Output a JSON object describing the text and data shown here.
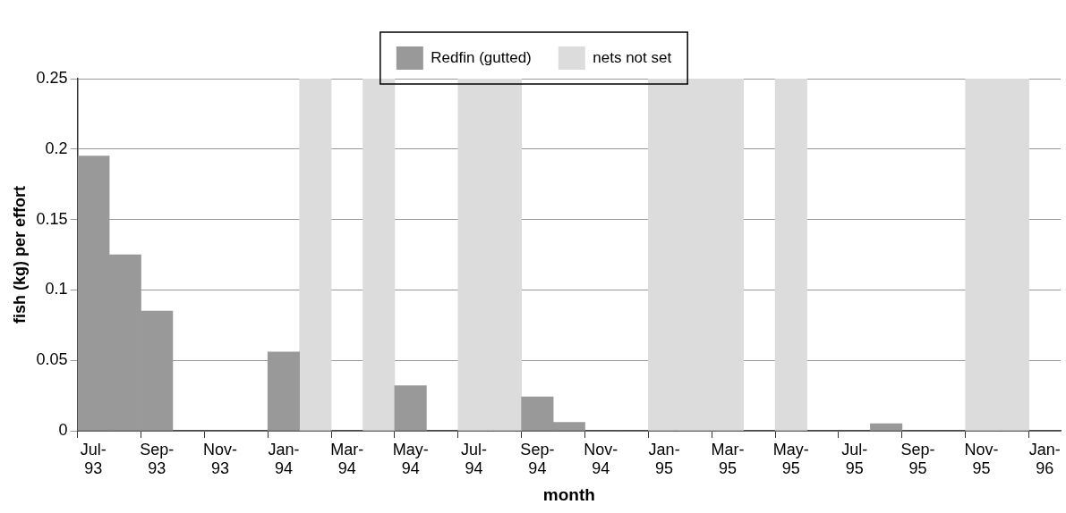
{
  "chart_data": {
    "type": "bar",
    "xlabel": "month",
    "ylabel": "fish (kg) per effort",
    "categories": [
      "Jul-93",
      null,
      "Sep-93",
      null,
      "Nov-93",
      null,
      "Jan-94",
      null,
      "Mar-94",
      null,
      "May-94",
      null,
      "Jul-94",
      null,
      "Sep-94",
      null,
      "Nov-94",
      null,
      "Jan-95",
      null,
      "Mar-95",
      null,
      "May-95",
      null,
      "Jul-95",
      null,
      "Sep-95",
      null,
      "Nov-95",
      null,
      "Jan-96"
    ],
    "series": [
      {
        "name": "Redfin (gutted)",
        "color": "#999999",
        "values": [
          0.195,
          0.125,
          0.085,
          0,
          0,
          0,
          0.056,
          null,
          0,
          null,
          0.032,
          0,
          null,
          null,
          0.024,
          0.006,
          0,
          0,
          null,
          null,
          null,
          0,
          null,
          0,
          0,
          0.005,
          0,
          0,
          null,
          null,
          0
        ]
      },
      {
        "name": "nets not set",
        "color": "#dcdcdc",
        "values": [
          null,
          null,
          null,
          null,
          null,
          null,
          null,
          0.25,
          null,
          0.25,
          null,
          null,
          0.25,
          0.25,
          null,
          null,
          null,
          null,
          0.25,
          0.25,
          0.25,
          null,
          0.25,
          null,
          null,
          null,
          null,
          null,
          0.25,
          0.25,
          null
        ]
      }
    ],
    "ylim": [
      0,
      0.25
    ],
    "yticks": [
      0,
      0.05,
      0.1,
      0.15,
      0.2,
      0.25
    ],
    "grid": "y",
    "legend": "top"
  }
}
